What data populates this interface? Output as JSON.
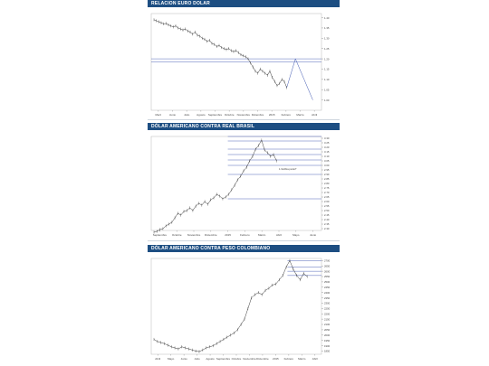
{
  "panels": [
    {
      "title": "RELACION EURO DOLAR",
      "chart_data": {
        "type": "line",
        "x_labels": [
          "Marz",
          "Junio",
          "Julio",
          "Agosto",
          "Septiembre",
          "Octubre",
          "Noviembre",
          "Diciembre",
          "2015",
          "Febrero",
          "Marzo",
          "Abril"
        ],
        "y_ticks": [
          "1.40",
          "1.35",
          "1.30",
          "1.25",
          "1.20",
          "1.15",
          "1.10",
          "1.05",
          "1.00"
        ],
        "ylim": [
          0.95,
          1.42
        ],
        "series": [
          {
            "values": [
              1.39,
              1.385,
              1.38,
              1.375,
              1.37,
              1.372,
              1.365,
              1.36,
              1.355,
              1.36,
              1.35,
              1.345,
              1.34,
              1.345,
              1.335,
              1.33,
              1.32,
              1.33,
              1.315,
              1.31,
              1.3,
              1.295,
              1.285,
              1.29,
              1.275,
              1.27,
              1.26,
              1.265,
              1.255,
              1.25,
              1.245,
              1.25,
              1.24,
              1.235,
              1.24,
              1.23,
              1.22,
              1.215,
              1.21,
              1.2,
              1.18,
              1.16,
              1.14,
              1.13,
              1.15,
              1.14,
              1.13,
              1.12,
              1.14,
              1.11,
              1.09,
              1.07,
              1.08,
              1.1,
              1.09,
              1.06
            ]
          }
        ],
        "reference_lines": [
          1.2,
          1.185
        ],
        "projection": [
          1.06,
          1.2,
          1.1,
          1.0
        ],
        "grid": false
      }
    },
    {
      "title": "DÓLAR AMERICANO CONTRA REAL BRASIL",
      "chart_data": {
        "type": "line",
        "x_labels": [
          "Septiembre",
          "Octubre",
          "Noviembre",
          "Diciembre",
          "2015",
          "Febrero",
          "Marzo",
          "Abril",
          "Mayo",
          "Junio"
        ],
        "y_ticks": [
          "3.30",
          "3.25",
          "3.20",
          "3.15",
          "3.10",
          "3.05",
          "3.00",
          "2.95",
          "2.90",
          "2.85",
          "2.80",
          "2.75",
          "2.70",
          "2.65",
          "2.60",
          "2.55",
          "2.50",
          "2.45",
          "2.40",
          "2.35",
          "2.30"
        ],
        "ylim": [
          2.28,
          3.32
        ],
        "series": [
          {
            "values": [
              2.26,
              2.27,
              2.29,
              2.3,
              2.33,
              2.35,
              2.37,
              2.42,
              2.47,
              2.45,
              2.49,
              2.5,
              2.53,
              2.5,
              2.55,
              2.58,
              2.56,
              2.6,
              2.57,
              2.62,
              2.64,
              2.68,
              2.66,
              2.63,
              2.65,
              2.68,
              2.73,
              2.78,
              2.84,
              2.88,
              2.94,
              2.98,
              3.05,
              3.1,
              3.18,
              3.22,
              3.28,
              3.17,
              3.14,
              3.1,
              3.12,
              3.05
            ]
          }
        ],
        "reference_lines": [
          3.32,
          3.27,
          3.18,
          3.12,
          3.06,
          3.0,
          2.9,
          2.63
        ],
        "annotation": "1.Verifica punto?",
        "grid": false
      }
    },
    {
      "title": "DÓLAR AMERICANO CONTRA PESO COLOMBIANO",
      "chart_data": {
        "type": "line",
        "x_labels": [
          "Abril",
          "Mayo",
          "Junio",
          "Julio",
          "Agosto",
          "Septiembre",
          "Octubre",
          "Noviembre",
          "Diciembre",
          "2015",
          "Febrero",
          "Marzo",
          "Abril"
        ],
        "y_ticks": [
          "2700",
          "2650",
          "2600",
          "2550",
          "2500",
          "2450",
          "2400",
          "2350",
          "2300",
          "2250",
          "2200",
          "2150",
          "2100",
          "2050",
          "2000",
          "1950",
          "1900",
          "1850"
        ],
        "ylim": [
          1820,
          2720
        ],
        "series": [
          {
            "values": [
              1960,
              1940,
              1930,
              1920,
              1905,
              1890,
              1880,
              1870,
              1890,
              1880,
              1870,
              1860,
              1850,
              1845,
              1860,
              1880,
              1890,
              1900,
              1920,
              1940,
              1960,
              1980,
              2000,
              2020,
              2050,
              2100,
              2150,
              2250,
              2350,
              2380,
              2400,
              2380,
              2420,
              2440,
              2470,
              2480,
              2520,
              2560,
              2640,
              2700,
              2620,
              2560,
              2520,
              2580,
              2550
            ]
          }
        ],
        "reference_lines": [
          2700,
          2640,
          2600,
          2560
        ],
        "grid": false
      }
    }
  ],
  "colors": {
    "header": "#1d4e82",
    "line": "#3a3a3a",
    "reference": "#3d55b0"
  }
}
